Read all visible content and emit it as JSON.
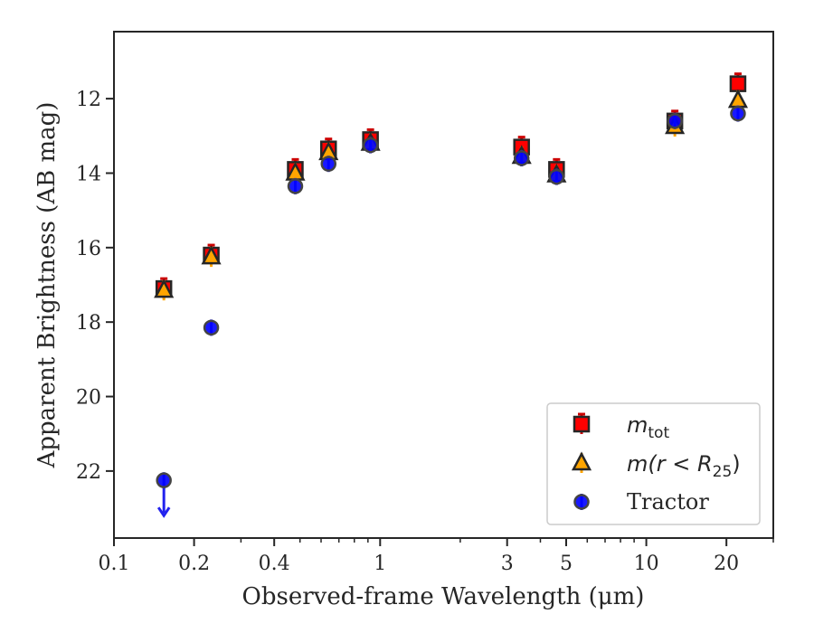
{
  "chart_data": {
    "type": "scatter",
    "xlabel": "Observed-frame Wavelength (μm)",
    "ylabel": "Apparent Brightness (AB mag)",
    "x_scale": "log",
    "y_inverted": true,
    "xlim": [
      0.1,
      30
    ],
    "ylim": [
      23.8,
      10.2
    ],
    "x_ticks": [
      {
        "value": 0.1,
        "label": "0.1"
      },
      {
        "value": 0.2,
        "label": "0.2"
      },
      {
        "value": 0.4,
        "label": "0.4"
      },
      {
        "value": 1,
        "label": "1"
      },
      {
        "value": 3,
        "label": "3"
      },
      {
        "value": 5,
        "label": "5"
      },
      {
        "value": 10,
        "label": "10"
      },
      {
        "value": 20,
        "label": "20"
      }
    ],
    "x_minor_ticks": [
      0.3,
      0.5,
      0.6,
      0.7,
      0.8,
      0.9,
      2,
      4,
      6,
      7,
      8,
      9,
      30
    ],
    "y_ticks": [
      12,
      14,
      16,
      18,
      20,
      22
    ],
    "legend_position": "bottom-right",
    "series": [
      {
        "name": "m_tot",
        "marker": "square",
        "face_color": "#ff0000",
        "edge_color": "#262626",
        "errorbar_color": "#cc0000",
        "x": [
          0.154,
          0.232,
          0.48,
          0.64,
          0.92,
          3.4,
          4.6,
          12.8,
          22.1
        ],
        "y": [
          17.1,
          16.2,
          13.9,
          13.35,
          13.1,
          13.3,
          13.9,
          12.6,
          11.6
        ]
      },
      {
        "name": "m(r < R25)",
        "marker": "triangle",
        "face_color": "#ffa500",
        "edge_color": "#262626",
        "errorbar_color": "#ffa500",
        "x": [
          0.154,
          0.232,
          0.48,
          0.64,
          0.92,
          3.4,
          4.6,
          12.8,
          22.1
        ],
        "y": [
          17.15,
          16.25,
          14.0,
          13.45,
          13.2,
          13.55,
          14.05,
          12.75,
          12.05
        ]
      },
      {
        "name": "Tractor",
        "marker": "circle",
        "face_color": "#0000ff",
        "edge_color": "#444444",
        "errorbar_color": "#2222ee",
        "x": [
          0.154,
          0.232,
          0.48,
          0.64,
          0.92,
          3.4,
          4.6,
          12.8,
          22.1
        ],
        "y": [
          22.25,
          18.15,
          14.35,
          13.75,
          13.25,
          13.6,
          14.1,
          12.6,
          12.4
        ],
        "upper_limit": [
          true,
          false,
          false,
          false,
          false,
          false,
          false,
          false,
          false
        ]
      }
    ]
  },
  "legend": {
    "items": [
      {
        "main": "m",
        "sub": "tot",
        "tail": ""
      },
      {
        "main": "m(r < R",
        "sub": "25",
        "tail": ")"
      },
      {
        "main": "Tractor",
        "sub": "",
        "tail": ""
      }
    ]
  }
}
